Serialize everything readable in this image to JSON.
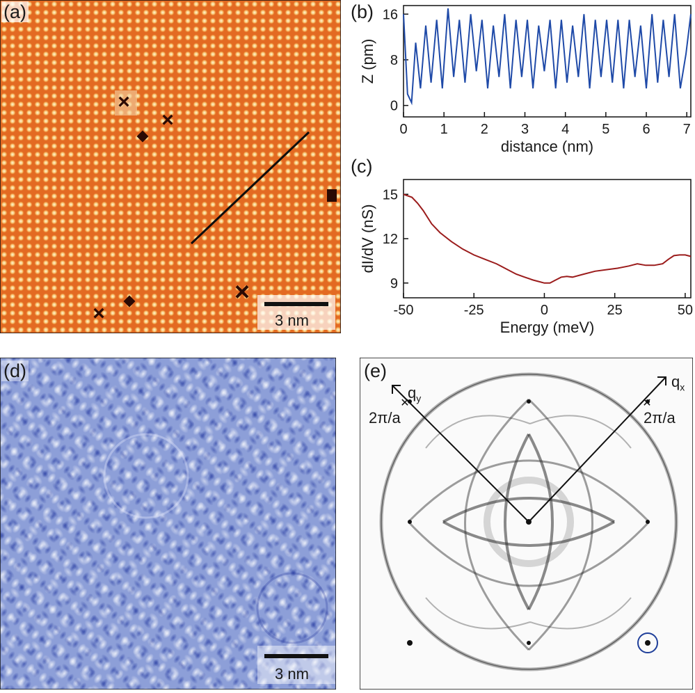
{
  "panels": {
    "a": {
      "label": "(a)",
      "scalebar": "3 nm"
    },
    "b": {
      "label": "(b)"
    },
    "c": {
      "label": "(c)"
    },
    "d": {
      "label": "(d)",
      "scalebar": "3 nm"
    },
    "e": {
      "label": "(e)",
      "qx": "q",
      "qx_sub": "x",
      "qy": "q",
      "qy_sub": "y",
      "recip_left": "2π/a",
      "recip_right": "2π/a"
    }
  },
  "colors": {
    "profile": "#1f4aa8",
    "spectrum": "#9b1c1c",
    "marker": "#1f3f9a"
  },
  "chart_data": [
    {
      "type": "line",
      "panel": "b",
      "xlabel": "distance (nm)",
      "ylabel": "Z (pm)",
      "xlim": [
        0,
        7.1
      ],
      "ylim": [
        -2,
        17.5
      ],
      "xticks": [
        0,
        1,
        2,
        3,
        4,
        5,
        6,
        7
      ],
      "yticks": [
        0,
        8,
        16
      ],
      "x": [
        0.0,
        0.1,
        0.2,
        0.3,
        0.42,
        0.55,
        0.68,
        0.82,
        0.96,
        1.1,
        1.24,
        1.38,
        1.52,
        1.66,
        1.8,
        1.94,
        2.08,
        2.22,
        2.36,
        2.5,
        2.64,
        2.78,
        2.92,
        3.06,
        3.2,
        3.34,
        3.48,
        3.62,
        3.76,
        3.9,
        4.04,
        4.18,
        4.32,
        4.46,
        4.6,
        4.74,
        4.88,
        5.02,
        5.16,
        5.3,
        5.44,
        5.58,
        5.72,
        5.86,
        6.0,
        6.14,
        6.28,
        6.42,
        6.56,
        6.7,
        6.84,
        6.98,
        7.1
      ],
      "y": [
        16,
        2,
        0.5,
        11,
        3,
        14,
        4,
        15,
        3,
        17,
        5,
        15,
        4,
        16,
        6,
        15,
        3,
        14,
        5,
        16,
        3,
        15,
        5,
        15,
        3,
        14,
        6,
        15,
        3,
        15,
        4,
        14,
        5,
        16,
        3,
        15,
        5,
        15,
        4,
        15,
        3,
        15,
        5,
        14,
        3,
        16,
        4,
        15,
        5,
        16,
        3,
        9,
        16
      ]
    },
    {
      "type": "line",
      "panel": "c",
      "xlabel": "Energy (meV)",
      "ylabel": "dI/dV (nS)",
      "xlim": [
        -50,
        52
      ],
      "ylim": [
        8,
        16
      ],
      "xticks": [
        -50,
        -25,
        0,
        25,
        50
      ],
      "yticks": [
        9,
        12,
        15
      ],
      "x": [
        -50,
        -47,
        -45,
        -43,
        -40,
        -37,
        -33,
        -29,
        -25,
        -21,
        -17,
        -13,
        -10,
        -7,
        -4,
        -2,
        0,
        2,
        4,
        6,
        8,
        10,
        14,
        18,
        22,
        26,
        30,
        33,
        36,
        39,
        42,
        44,
        46,
        48,
        50,
        52
      ],
      "y": [
        15,
        14.8,
        14.4,
        13.9,
        13.0,
        12.4,
        11.8,
        11.3,
        10.9,
        10.6,
        10.3,
        9.9,
        9.6,
        9.4,
        9.2,
        9.1,
        9.0,
        9.0,
        9.2,
        9.4,
        9.45,
        9.4,
        9.6,
        9.8,
        9.9,
        10.0,
        10.15,
        10.3,
        10.2,
        10.2,
        10.3,
        10.6,
        10.85,
        10.9,
        10.9,
        10.8
      ]
    }
  ]
}
